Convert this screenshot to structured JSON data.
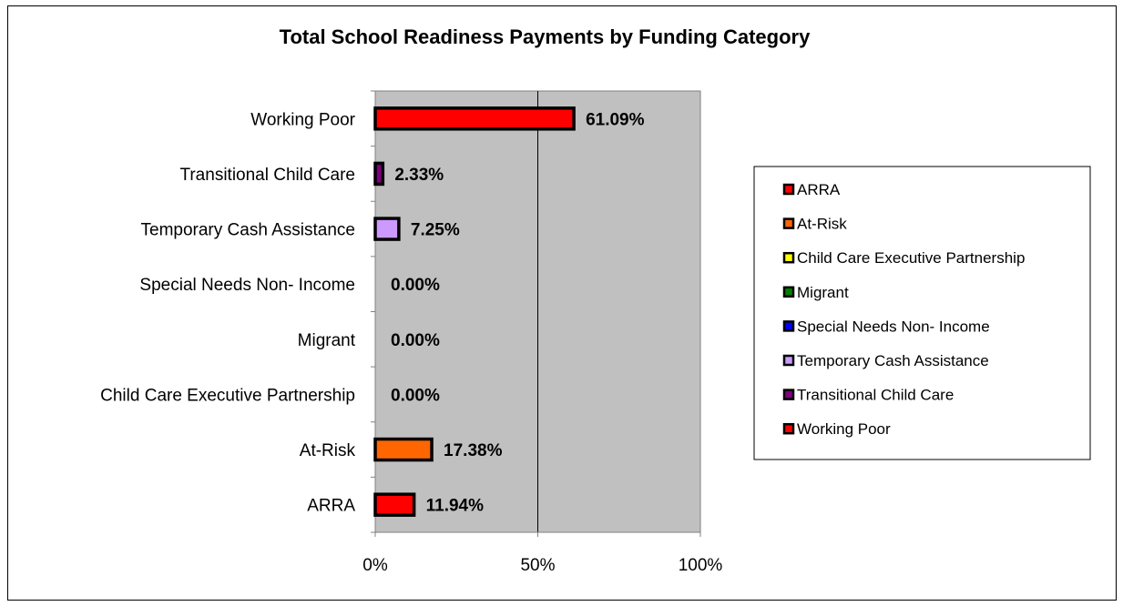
{
  "chart_data": {
    "type": "bar",
    "orientation": "horizontal",
    "title": "Total School Readiness Payments by Funding Category",
    "categories": [
      "ARRA",
      "At-Risk",
      "Child Care Executive Partnership",
      "Migrant",
      "Special Needs Non- Income",
      "Temporary Cash Assistance",
      "Transitional Child Care",
      "Working Poor"
    ],
    "values": [
      11.94,
      17.38,
      0.0,
      0.0,
      0.0,
      7.25,
      2.33,
      61.09
    ],
    "data_labels": [
      "11.94%",
      "17.38%",
      "0.00%",
      "0.00%",
      "0.00%",
      "7.25%",
      "2.33%",
      "61.09%"
    ],
    "colors": [
      "#ff0000",
      "#ff6600",
      "#ffff00",
      "#008000",
      "#0000ff",
      "#cc99ff",
      "#800080",
      "#ff0000"
    ],
    "xlim": [
      0,
      100
    ],
    "x_ticks": [
      0,
      50,
      100
    ],
    "x_tick_labels": [
      "0%",
      "50%",
      "100%"
    ],
    "plot_background": "#c0c0c0",
    "grid": "vertical major gridlines",
    "legend_placement": "right",
    "legend": [
      "ARRA",
      "At-Risk",
      "Child Care Executive Partnership",
      "Migrant",
      "Special Needs Non- Income",
      "Temporary Cash Assistance",
      "Transitional Child Care",
      "Working Poor"
    ]
  }
}
